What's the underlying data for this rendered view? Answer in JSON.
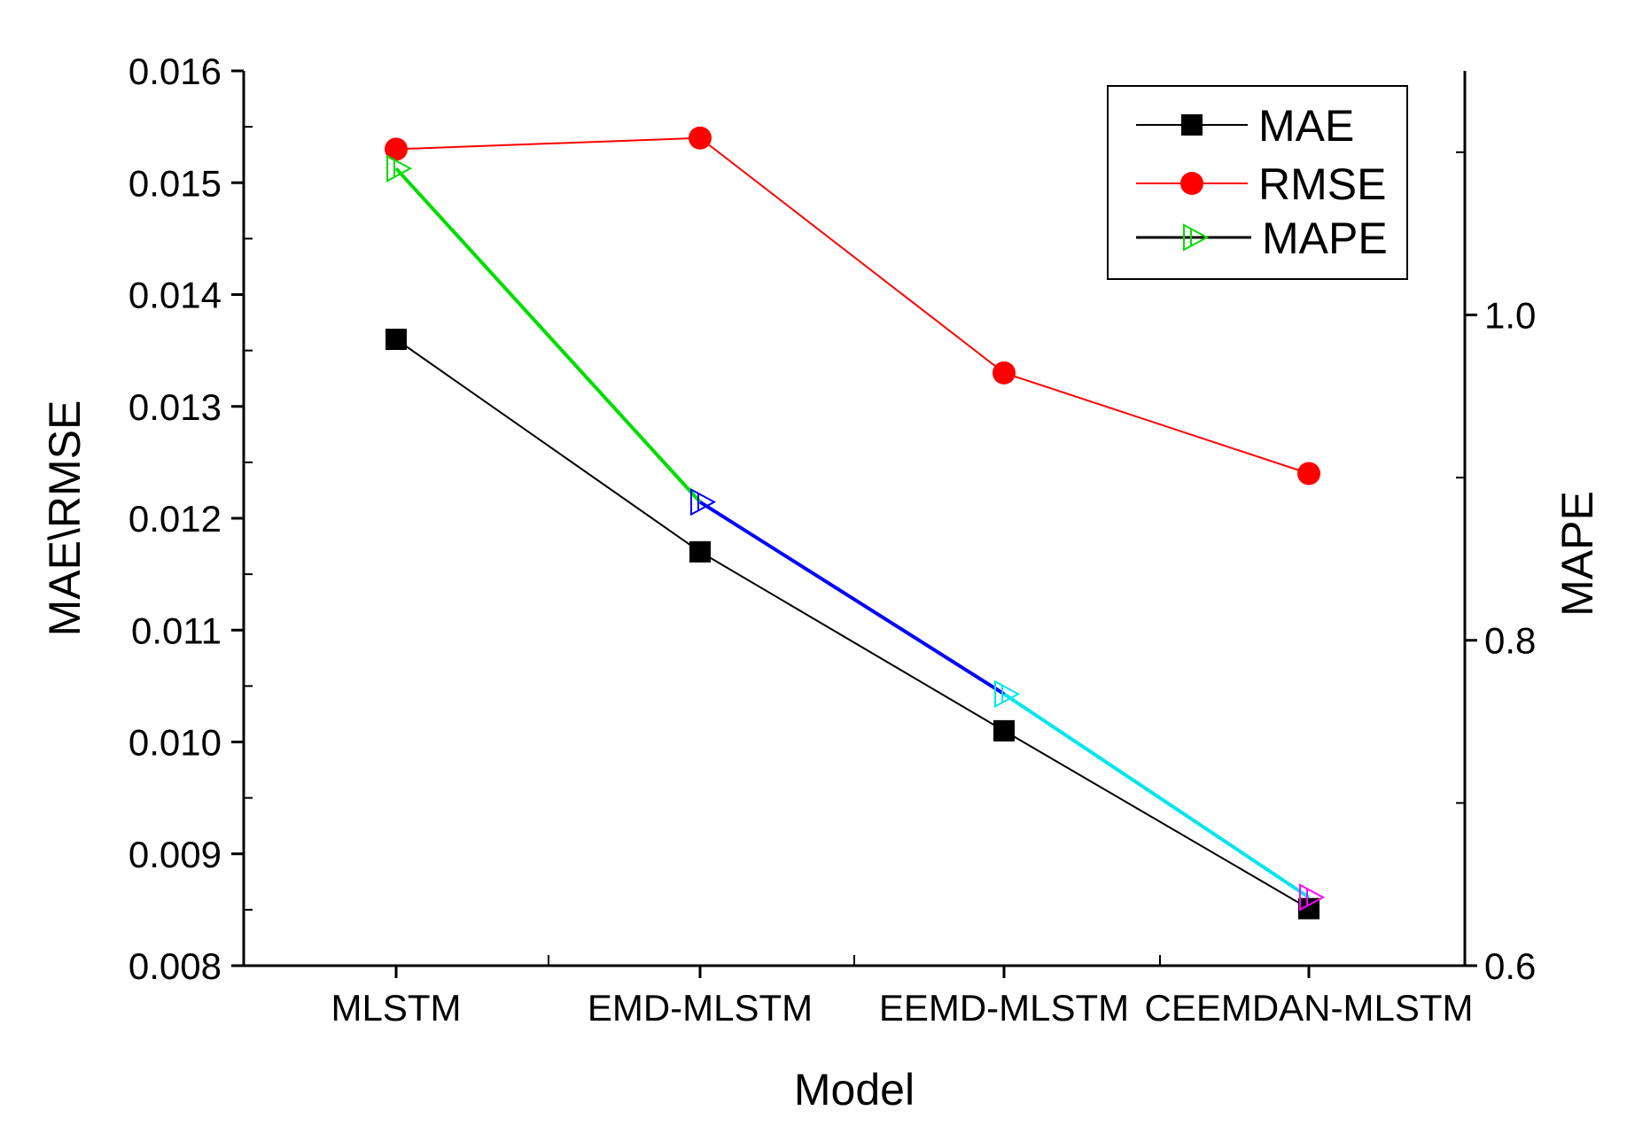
{
  "chart_data": {
    "type": "line",
    "categories": [
      "MLSTM",
      "EMD-MLSTM",
      "EEMD-MLSTM",
      "CEEMDAN-MLSTM"
    ],
    "xlabel": "Model",
    "ylabel_left": "MAE\\RMSE",
    "ylabel_right": "MAPE",
    "ylim_left": [
      0.008,
      0.016
    ],
    "ylim_right": [
      0.6,
      1.15
    ],
    "yticks_left": [
      "0.008",
      "0.009",
      "0.010",
      "0.011",
      "0.012",
      "0.013",
      "0.014",
      "0.015",
      "0.016"
    ],
    "yticks_right": [
      "0.6",
      "0.8",
      "1.0"
    ],
    "legend_position": "top-right",
    "series": [
      {
        "name": "MAE",
        "axis": "left",
        "marker": "square",
        "color": "#000000",
        "values": [
          0.0136,
          0.0117,
          0.0101,
          0.00851
        ]
      },
      {
        "name": "RMSE",
        "axis": "left",
        "marker": "circle",
        "color": "#ff0000",
        "values": [
          0.0153,
          0.0154,
          0.0133,
          0.0124
        ]
      },
      {
        "name": "MAPE",
        "axis": "right",
        "marker": "triangle-right",
        "color": "#000000",
        "point_colors": [
          "#00dd00",
          "#0000ff",
          "#00e5ee",
          "#ff00ff"
        ],
        "values": [
          1.09,
          0.885,
          0.767,
          0.642
        ]
      }
    ]
  }
}
